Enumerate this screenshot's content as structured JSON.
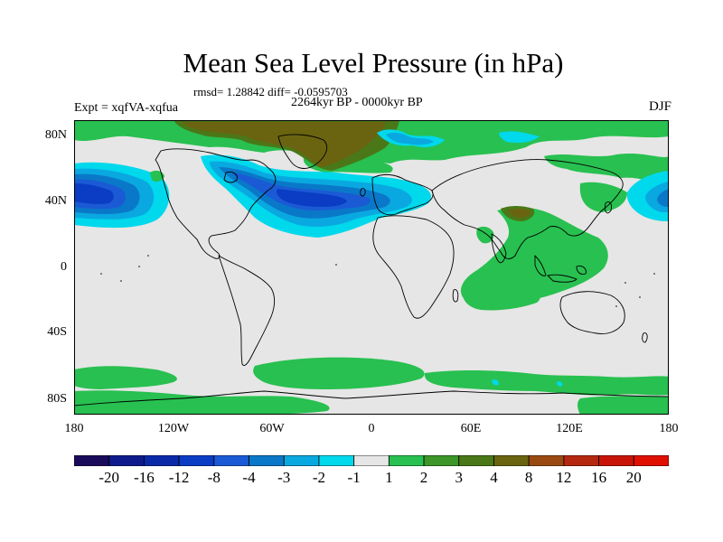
{
  "title": "Mean Sea Level Pressure (in hPa)",
  "stats": "rmsd= 1.28842  diff= -0.0595703",
  "period": "2264kyr BP - 0000kyr BP",
  "experiment": "Expt = xqfVA-xqfua",
  "season": "DJF",
  "y_ticks": [
    "80N",
    "40N",
    "0",
    "40S",
    "80S"
  ],
  "x_ticks": [
    "180",
    "120W",
    "60W",
    "0",
    "60E",
    "120E",
    "180"
  ],
  "legend": {
    "labels": [
      "-20",
      "-16",
      "-12",
      "-8",
      "-4",
      "-3",
      "-2",
      "-1",
      "1",
      "2",
      "3",
      "4",
      "8",
      "12",
      "16",
      "20"
    ],
    "colors": [
      "#1a0a5a",
      "#0f1a8c",
      "#0a2aa8",
      "#0a3cc4",
      "#1a5ad4",
      "#0a78c8",
      "#0aa8e0",
      "#00d8ec",
      "#e6e6e6",
      "#28c050",
      "#3c9628",
      "#4a7818",
      "#6a6410",
      "#9a4a10",
      "#b42810",
      "#c81408",
      "#e01000"
    ]
  },
  "colors": {
    "background_field": "#e6e6e6",
    "coast": "#000000"
  }
}
